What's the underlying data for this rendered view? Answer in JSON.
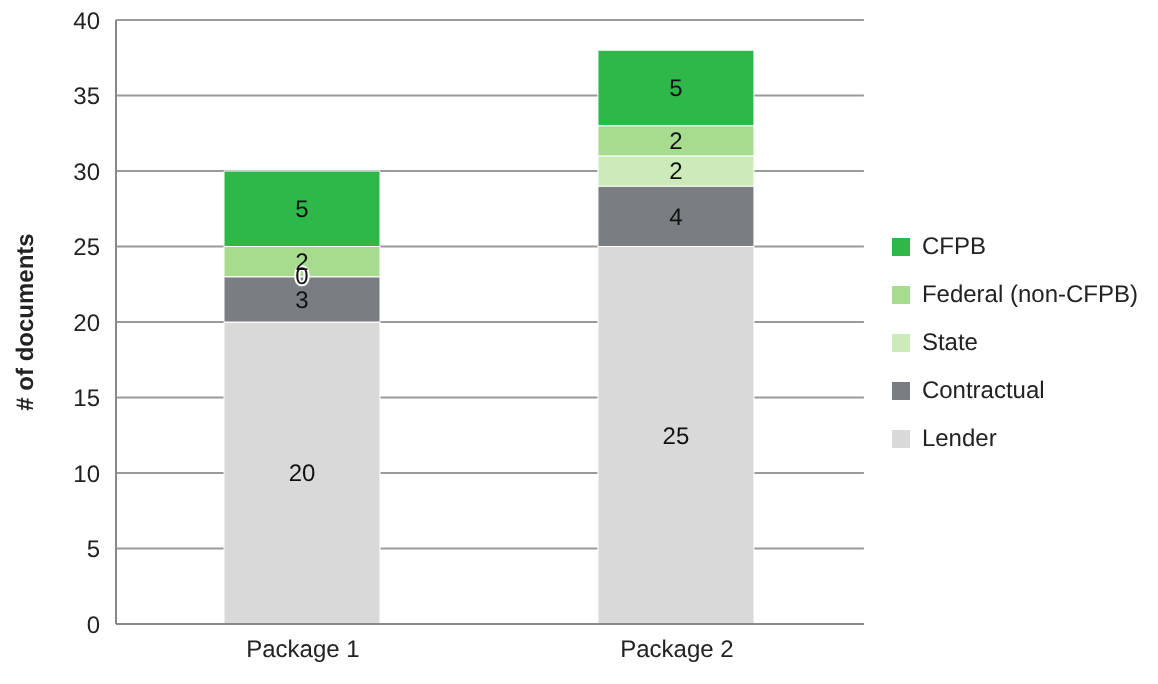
{
  "chart_data": {
    "type": "bar",
    "stacked": true,
    "ylabel": "# of documents",
    "categories": [
      "Package 1",
      "Package 2"
    ],
    "series": [
      {
        "name": "Lender",
        "color": "#d9d9d9",
        "values": [
          20,
          25
        ]
      },
      {
        "name": "Contractual",
        "color": "#7a7e82",
        "values": [
          3,
          4
        ]
      },
      {
        "name": "State",
        "color": "#cdeabb",
        "values": [
          0,
          2
        ]
      },
      {
        "name": "Federal (non-CFPB)",
        "color": "#a7dc8e",
        "values": [
          2,
          2
        ]
      },
      {
        "name": "CFPB",
        "color": "#2eb84a",
        "values": [
          5,
          5
        ]
      }
    ],
    "ylim": [
      0,
      40
    ],
    "yticks": [
      0,
      5,
      10,
      15,
      20,
      25,
      30,
      35,
      40
    ],
    "grid": "y",
    "legend": "right",
    "data_labels": true
  }
}
